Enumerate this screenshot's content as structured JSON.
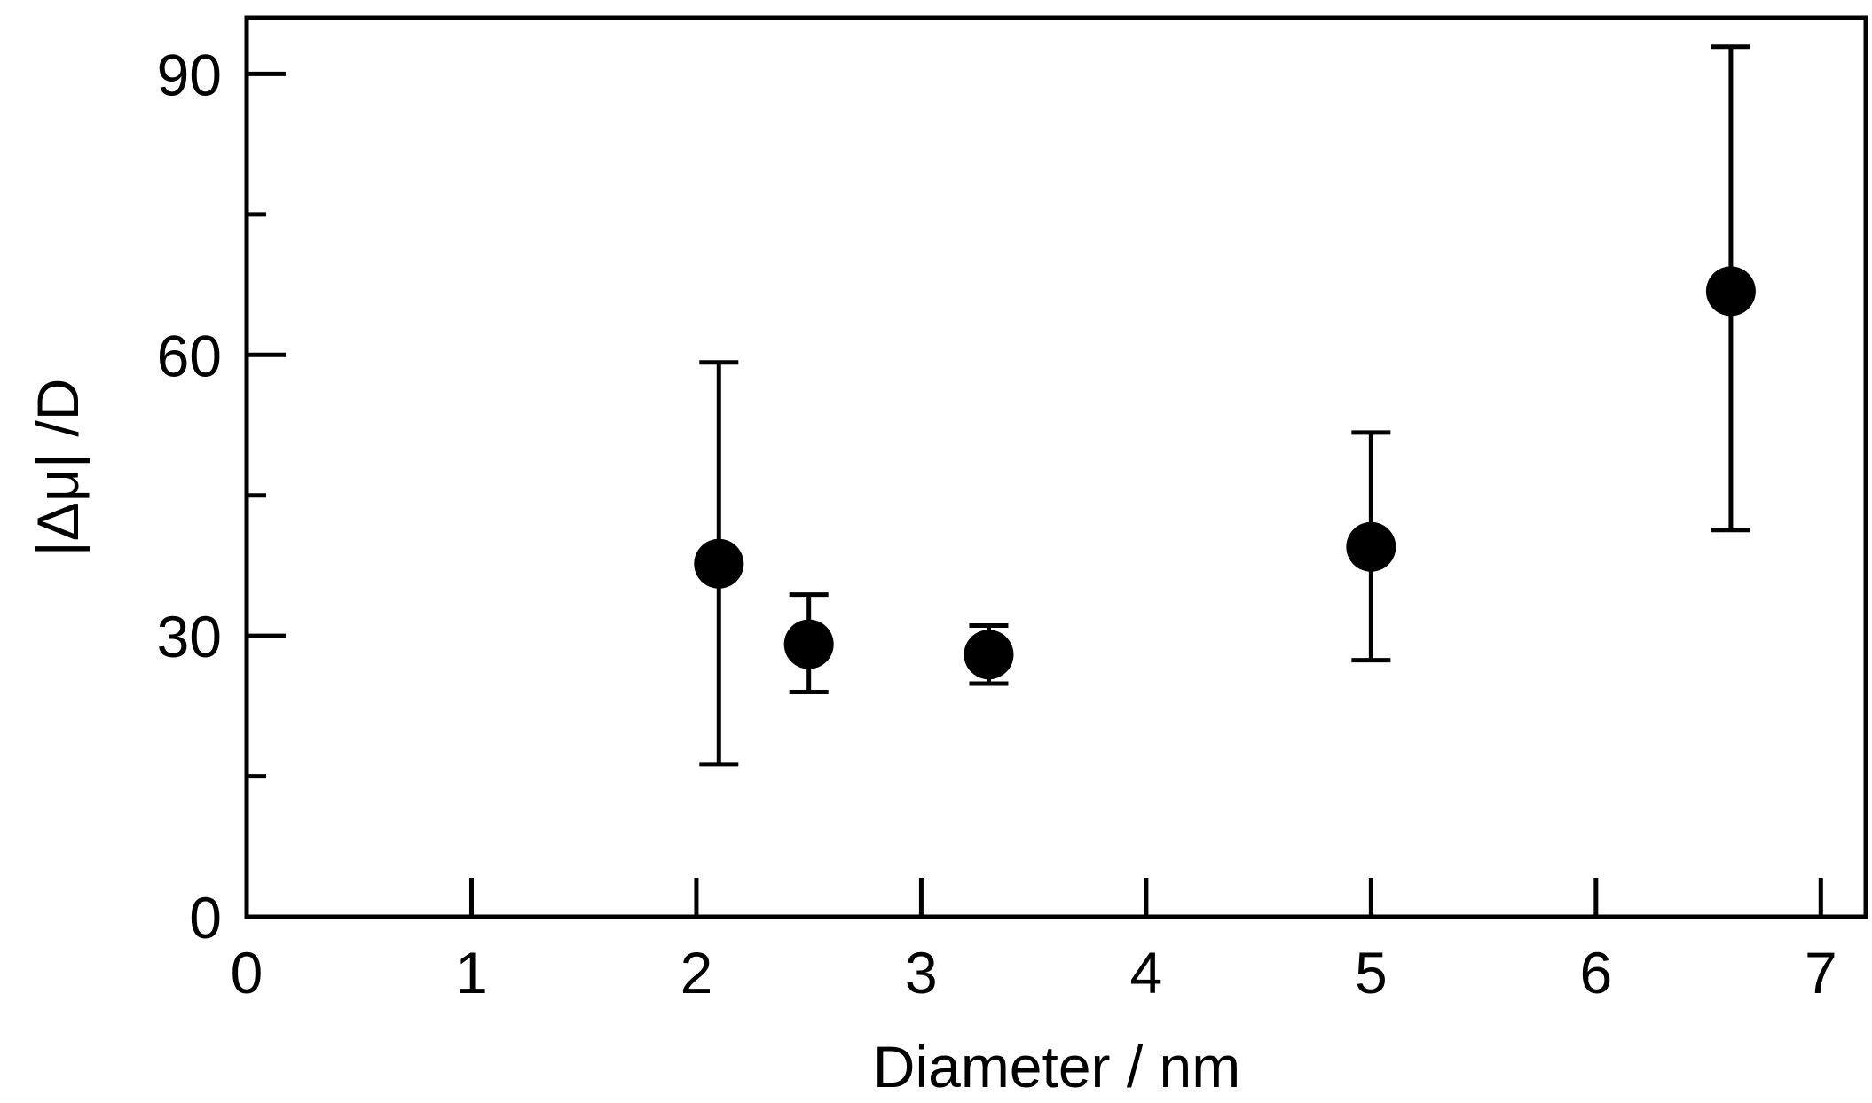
{
  "chart_data": {
    "type": "scatter",
    "title": "",
    "xlabel": "Diameter / nm",
    "ylabel": "|Δμ| /D",
    "xlim": [
      0,
      7.2
    ],
    "ylim": [
      0,
      96
    ],
    "x_ticks": [
      0,
      1,
      2,
      3,
      4,
      5,
      6,
      7
    ],
    "y_ticks": [
      0,
      30,
      60,
      90
    ],
    "y_minor_ticks": [
      15,
      45,
      75
    ],
    "grid": false,
    "legend": "none",
    "colors": {
      "marker": "#000000",
      "axis": "#000000",
      "background": "#ffffff"
    },
    "series": [
      {
        "x": [
          2.1,
          2.5,
          3.3,
          5.0,
          6.6
        ],
        "y": [
          37.7,
          29.1,
          28.0,
          39.5,
          66.8
        ],
        "y_err_low": [
          16.3,
          24.0,
          24.9,
          27.4,
          41.3
        ],
        "y_err_high": [
          59.2,
          34.4,
          31.1,
          51.7,
          92.9
        ]
      }
    ]
  }
}
